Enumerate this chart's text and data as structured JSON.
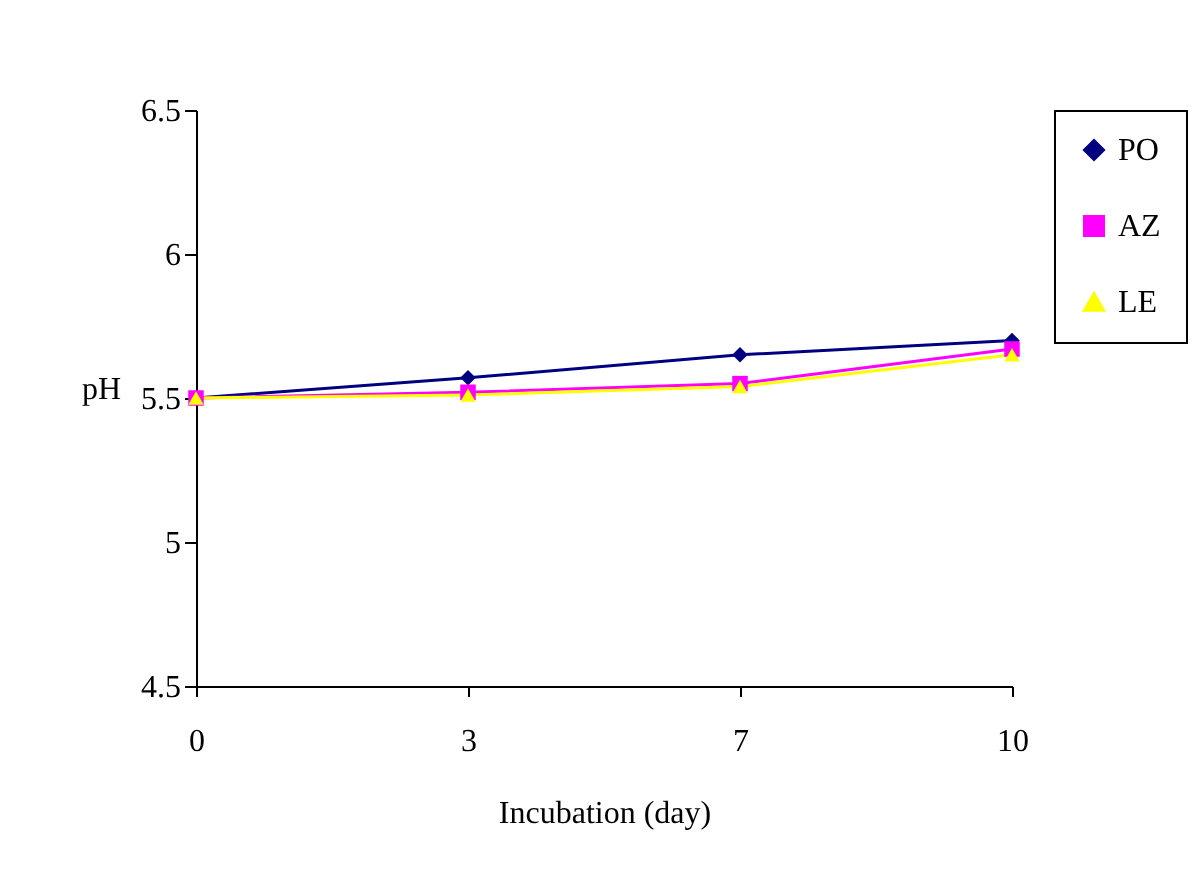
{
  "chart_data": {
    "type": "line",
    "xlabel": "Incubation (day)",
    "ylabel": "pH",
    "categories": [
      "0",
      "3",
      "7",
      "10"
    ],
    "ylim": [
      4.5,
      6.5
    ],
    "yticks": [
      4.5,
      5,
      5.5,
      6,
      6.5
    ],
    "grid": false,
    "legend": "right",
    "line_style": "solid",
    "series": [
      {
        "name": "PO",
        "color": "#000080",
        "marker": "diamond",
        "values": [
          5.5,
          5.57,
          5.65,
          5.7
        ]
      },
      {
        "name": "AZ",
        "color": "#ff00ff",
        "marker": "square",
        "values": [
          5.5,
          5.52,
          5.55,
          5.67
        ]
      },
      {
        "name": "LE",
        "color": "#ffff00",
        "marker": "triangle",
        "values": [
          5.5,
          5.51,
          5.54,
          5.65
        ]
      }
    ]
  }
}
